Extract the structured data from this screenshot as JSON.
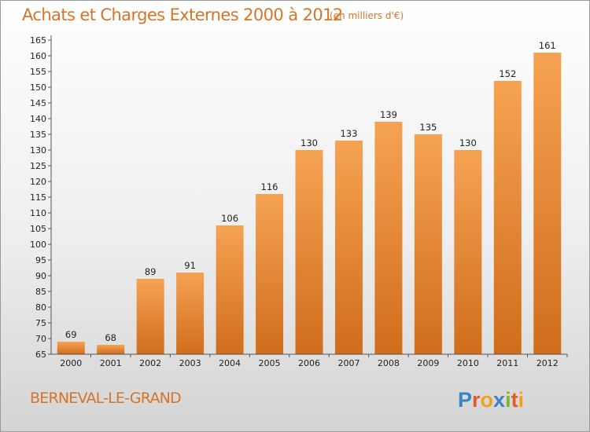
{
  "header": {
    "title": "Achats et Charges Externes 2000 à 2012",
    "subtitle": "(en milliers d'€)"
  },
  "footer": {
    "town": "BERNEVAL-LE-GRAND",
    "logo_text": "Proxiti"
  },
  "colors": {
    "accent": "#d4752a",
    "bar_top": "#f5a353",
    "bar_bottom": "#d06d1c"
  },
  "chart_data": {
    "type": "bar",
    "title": "Achats et Charges Externes 2000 à 2012",
    "subtitle": "(en milliers d'€)",
    "xlabel": "",
    "ylabel": "",
    "categories": [
      "2000",
      "2001",
      "2002",
      "2003",
      "2004",
      "2005",
      "2006",
      "2007",
      "2008",
      "2009",
      "2010",
      "2011",
      "2012"
    ],
    "values": [
      69,
      68,
      89,
      91,
      106,
      116,
      130,
      133,
      139,
      135,
      130,
      152,
      161
    ],
    "ylim": [
      65,
      165
    ],
    "yticks": [
      65,
      70,
      75,
      80,
      85,
      90,
      95,
      100,
      105,
      110,
      115,
      120,
      125,
      130,
      135,
      140,
      145,
      150,
      155,
      160,
      165
    ],
    "grid": false,
    "legend": "none"
  }
}
